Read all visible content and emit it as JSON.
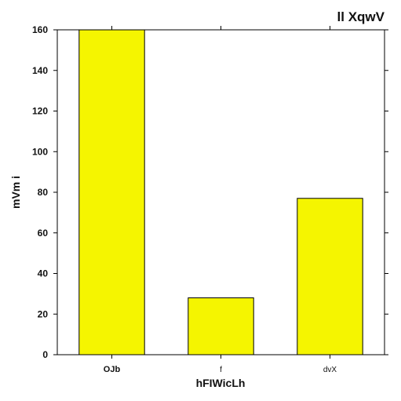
{
  "chart_data": {
    "type": "bar",
    "title": "ll XqwV",
    "xlabel": "hFIWicLh",
    "ylabel": "mVm i",
    "categories": [
      "OJb",
      "f",
      "dvX"
    ],
    "category_bold": [
      true,
      false,
      false
    ],
    "values": [
      160,
      28,
      77
    ],
    "ylim": [
      0,
      160
    ],
    "yticks": [
      0,
      20,
      40,
      60,
      80,
      100,
      120,
      140,
      160
    ],
    "bar_color": "#f5f500",
    "bar_edge_color": "#000000",
    "grid": false,
    "legend": "none"
  }
}
